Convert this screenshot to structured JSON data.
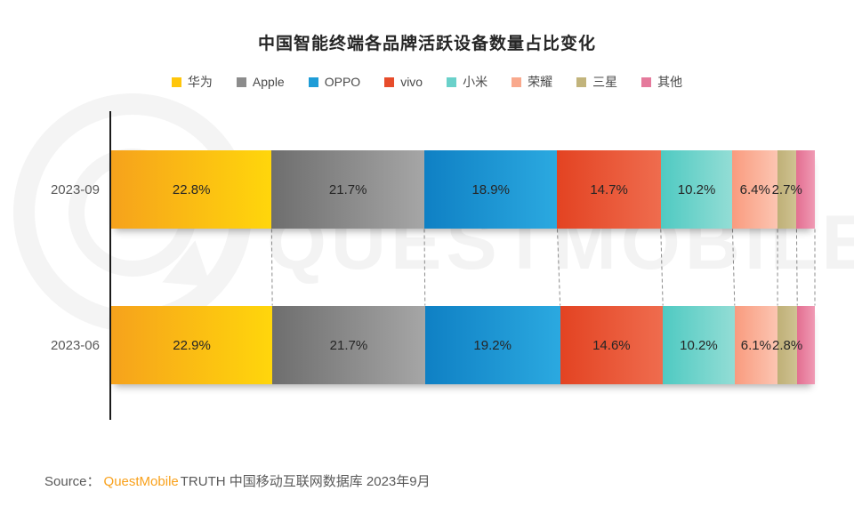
{
  "title": "中国智能终端各品牌活跃设备数量占比变化",
  "watermark": "QUESTMOBILE",
  "source": {
    "prefix": "Source：",
    "brand": "QuestMobile",
    "rest": "TRUTH 中国移动互联网数据库 2023年9月"
  },
  "chart_data": {
    "type": "bar",
    "variant": "horizontal-stacked-100",
    "unit": "%",
    "title": "中国智能终端各品牌活跃设备数量占比变化",
    "legend_position": "top",
    "xlim": [
      0,
      100
    ],
    "grid": false,
    "categories": [
      "2023-09",
      "2023-06"
    ],
    "series": [
      {
        "name": "华为",
        "values": [
          22.8,
          22.9
        ],
        "labels": [
          "22.8%",
          "22.9%"
        ],
        "color_start": "#F6A21C",
        "color_end": "#FFD60B",
        "legend_color": "#FFC60B",
        "labels_shown": true
      },
      {
        "name": "Apple",
        "values": [
          21.7,
          21.7
        ],
        "labels": [
          "21.7%",
          "21.7%"
        ],
        "color_start": "#6E6E6E",
        "color_end": "#A6A6A6",
        "legend_color": "#8C8C8C",
        "labels_shown": true
      },
      {
        "name": "OPPO",
        "values": [
          18.9,
          19.2
        ],
        "labels": [
          "18.9%",
          "19.2%"
        ],
        "color_start": "#0F80C4",
        "color_end": "#2BA9E0",
        "legend_color": "#1E9CD7",
        "labels_shown": true
      },
      {
        "name": "vivo",
        "values": [
          14.7,
          14.6
        ],
        "labels": [
          "14.7%",
          "14.6%"
        ],
        "color_start": "#E34322",
        "color_end": "#EF6C4E",
        "legend_color": "#E74C2B",
        "labels_shown": true
      },
      {
        "name": "小米",
        "values": [
          10.2,
          10.2
        ],
        "labels": [
          "10.2%",
          "10.2%"
        ],
        "color_start": "#4FCAC2",
        "color_end": "#93DDD5",
        "legend_color": "#6AD1CA",
        "labels_shown": true
      },
      {
        "name": "荣耀",
        "values": [
          6.4,
          6.1
        ],
        "labels": [
          "6.4%",
          "6.1%"
        ],
        "color_start": "#F99B7E",
        "color_end": "#FCC5B2",
        "legend_color": "#F9A98D",
        "labels_shown": true
      },
      {
        "name": "三星",
        "values": [
          2.7,
          2.8
        ],
        "labels": [
          "2.7%",
          "2.8%"
        ],
        "color_start": "#BFB077",
        "color_end": "#CFC292",
        "legend_color": "#C2B47C",
        "labels_shown": true
      },
      {
        "name": "其他",
        "values": [
          2.6,
          2.5
        ],
        "labels": [
          "",
          ""
        ],
        "color_start": "#E36F91",
        "color_end": "#F09AB4",
        "legend_color": "#E57A9C",
        "labels_shown": false
      }
    ]
  }
}
